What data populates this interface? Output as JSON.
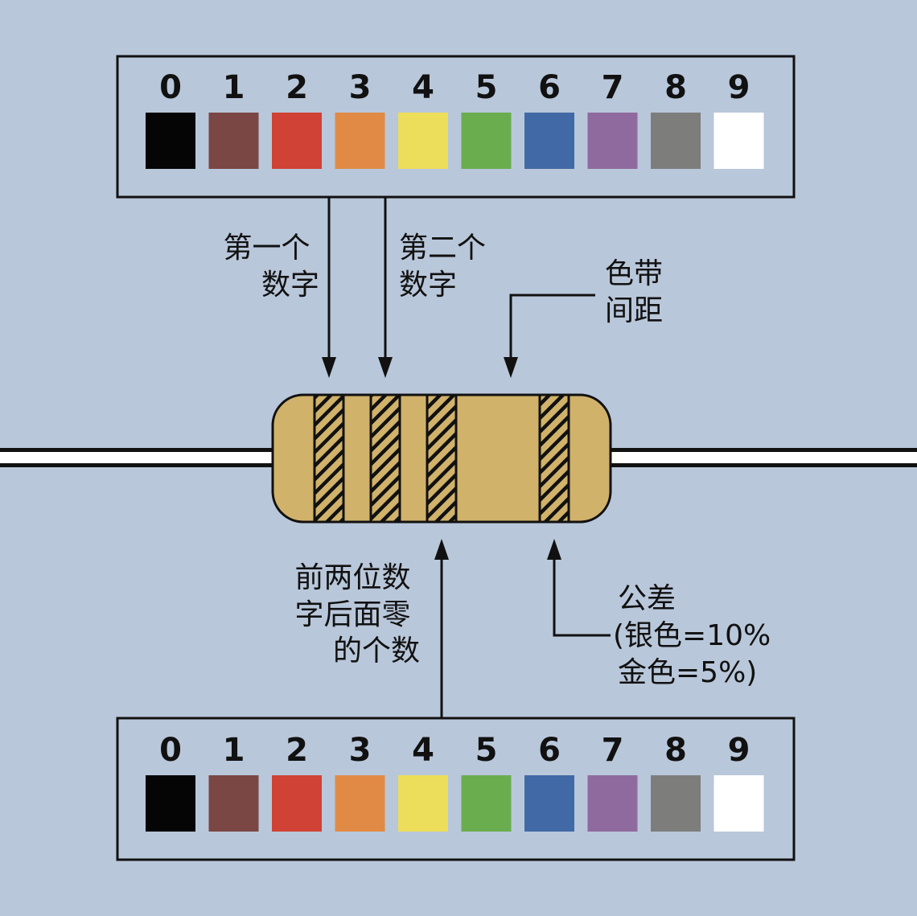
{
  "colors": {
    "background": "#b9c7da",
    "resistor_body": "#d1b26a",
    "stroke": "#111111",
    "wire": "#ffffff"
  },
  "color_code": [
    {
      "digit": "0",
      "color": "#050505"
    },
    {
      "digit": "1",
      "color": "#7a4744"
    },
    {
      "digit": "2",
      "color": "#cf4235"
    },
    {
      "digit": "3",
      "color": "#e08a46"
    },
    {
      "digit": "4",
      "color": "#ecdd5a"
    },
    {
      "digit": "5",
      "color": "#6aad4f"
    },
    {
      "digit": "6",
      "color": "#4169a6"
    },
    {
      "digit": "7",
      "color": "#8f6a9e"
    },
    {
      "digit": "8",
      "color": "#7d7d7c"
    },
    {
      "digit": "9",
      "color": "#ffffff"
    }
  ],
  "labels": {
    "first_digit": [
      "第一个",
      "数字"
    ],
    "second_digit": [
      "第二个",
      "数字"
    ],
    "band_gap": [
      "色带",
      "间距"
    ],
    "multiplier": [
      "前两位数",
      "字后面零",
      "的个数"
    ],
    "tolerance": [
      "公差",
      "(银色=10%",
      "金色=5%)"
    ]
  }
}
